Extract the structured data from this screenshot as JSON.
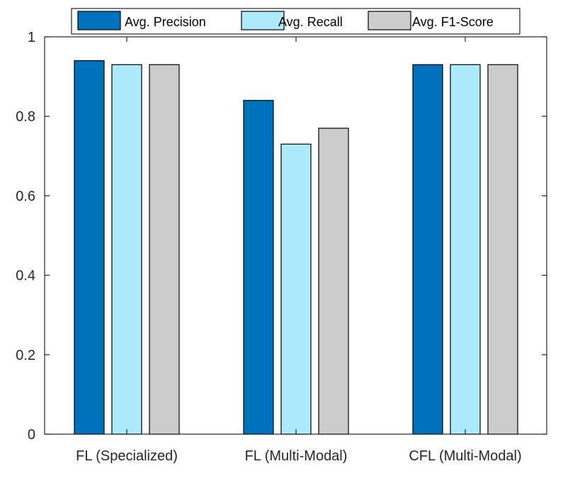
{
  "chart_data": {
    "type": "bar",
    "title": "",
    "xlabel": "",
    "ylabel": "",
    "ylim": [
      0,
      1
    ],
    "yticks": [
      "0",
      "0.2",
      "0.4",
      "0.6",
      "0.8",
      "1"
    ],
    "yticks_values": [
      0,
      0.2,
      0.4,
      0.6,
      0.8,
      1
    ],
    "categories": [
      "FL (Specialized)",
      "FL (Multi-Modal)",
      "CFL (Multi-Modal)"
    ],
    "series": [
      {
        "name": "Avg. Precision",
        "color": "#0072BD",
        "values": [
          0.94,
          0.84,
          0.93
        ]
      },
      {
        "name": "Avg. Recall",
        "color": "#ADEAFC",
        "values": [
          0.93,
          0.73,
          0.93
        ]
      },
      {
        "name": "Avg. F1-Score",
        "color": "#CCCCCC",
        "values": [
          0.93,
          0.77,
          0.93
        ]
      }
    ],
    "legend_position": "top"
  }
}
